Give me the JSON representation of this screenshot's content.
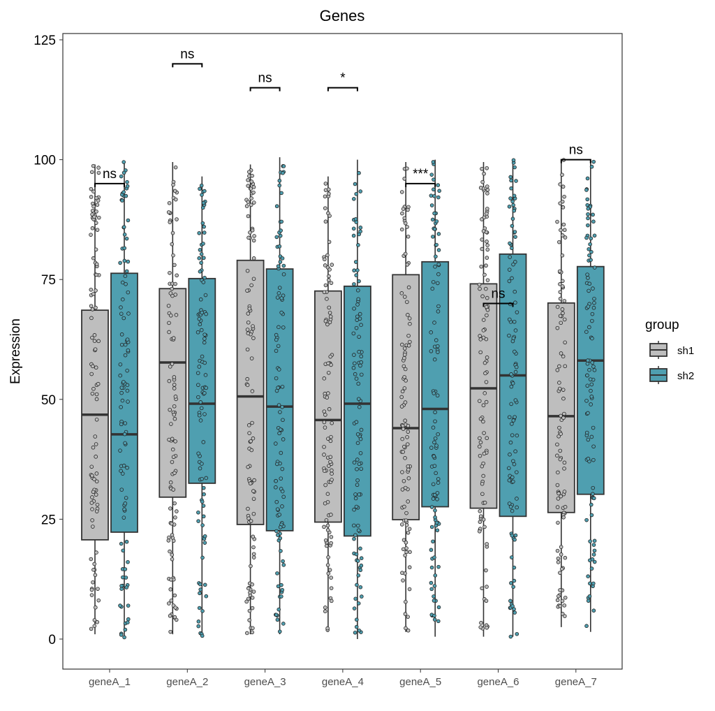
{
  "chart_data": {
    "type": "boxplot",
    "title": "Genes",
    "xlabel": "",
    "ylabel": "Expression",
    "ylim": [
      -5.5,
      126.5
    ],
    "yticks": [
      0,
      25,
      50,
      75,
      100,
      125
    ],
    "categories": [
      "geneA_1",
      "geneA_2",
      "geneA_3",
      "geneA_4",
      "geneA_5",
      "geneA_6",
      "geneA_7"
    ],
    "legend": {
      "title": "group",
      "position": "right",
      "entries": [
        "sh1",
        "sh2"
      ]
    },
    "colors": {
      "sh1": "#bebebe",
      "sh2": "#4f9fb0"
    },
    "grid": false,
    "jitter_points_overlay": true,
    "series": [
      {
        "name": "sh1",
        "boxes": [
          {
            "min": 1,
            "q1": 20.7,
            "median": 46.8,
            "q3": 68.6,
            "max": 99
          },
          {
            "min": 1,
            "q1": 29.6,
            "median": 57.7,
            "q3": 73.1,
            "max": 99.5
          },
          {
            "min": 1,
            "q1": 23.9,
            "median": 50.6,
            "q3": 79.0,
            "max": 99
          },
          {
            "min": 1.5,
            "q1": 24.4,
            "median": 45.7,
            "q3": 72.6,
            "max": 96.5
          },
          {
            "min": 1.5,
            "q1": 24.9,
            "median": 44.0,
            "q3": 76.0,
            "max": 99.5
          },
          {
            "min": 0.5,
            "q1": 27.3,
            "median": 52.3,
            "q3": 74.1,
            "max": 99.5
          },
          {
            "min": 2.5,
            "q1": 26.4,
            "median": 46.5,
            "q3": 70.1,
            "max": 100
          }
        ]
      },
      {
        "name": "sh2",
        "boxes": [
          {
            "min": 0,
            "q1": 22.3,
            "median": 42.7,
            "q3": 76.3,
            "max": 99.5
          },
          {
            "min": 0.5,
            "q1": 32.5,
            "median": 49.1,
            "q3": 75.2,
            "max": 96.5
          },
          {
            "min": 1,
            "q1": 22.6,
            "median": 48.5,
            "q3": 77.2,
            "max": 100.5
          },
          {
            "min": 0,
            "q1": 21.5,
            "median": 49.1,
            "q3": 73.6,
            "max": 100
          },
          {
            "min": 0.5,
            "q1": 27.6,
            "median": 48.0,
            "q3": 78.7,
            "max": 100
          },
          {
            "min": 0.5,
            "q1": 25.6,
            "median": 55.0,
            "q3": 80.3,
            "max": 100
          },
          {
            "min": 1.5,
            "q1": 30.2,
            "median": 58.1,
            "q3": 77.7,
            "max": 100
          }
        ]
      }
    ],
    "annotations": [
      {
        "category": "geneA_1",
        "label": "ns",
        "y": 95
      },
      {
        "category": "geneA_2",
        "label": "ns",
        "y": 120
      },
      {
        "category": "geneA_3",
        "label": "ns",
        "y": 115
      },
      {
        "category": "geneA_4",
        "label": "*",
        "y": 115
      },
      {
        "category": "geneA_5",
        "label": "***",
        "y": 95
      },
      {
        "category": "geneA_6",
        "label": "ns",
        "y": 70
      },
      {
        "category": "geneA_7",
        "label": "ns",
        "y": 100
      }
    ]
  }
}
